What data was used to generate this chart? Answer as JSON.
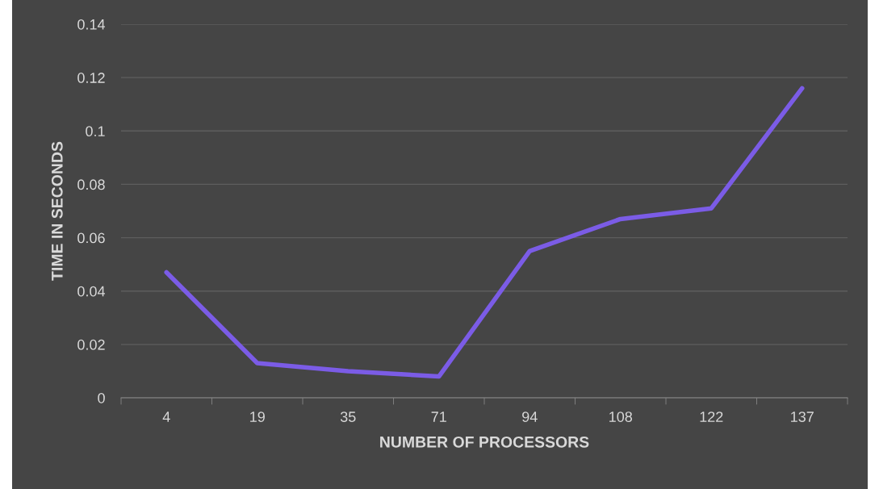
{
  "chart_data": {
    "type": "line",
    "xlabel": "NUMBER OF PROCESSORS",
    "ylabel": "TIME IN SECONDS",
    "categories": [
      "4",
      "19",
      "35",
      "71",
      "94",
      "108",
      "122",
      "137"
    ],
    "series": [
      {
        "color": "#7b5ce6",
        "values": [
          0.047,
          0.013,
          0.01,
          0.008,
          0.055,
          0.067,
          0.071,
          0.116
        ]
      }
    ],
    "ylim": [
      0,
      0.14
    ],
    "yticks": [
      0,
      0.02,
      0.04,
      0.06,
      0.08,
      0.1,
      0.12,
      0.14
    ],
    "grid": "y",
    "marker": "none",
    "line_style": "solid"
  }
}
